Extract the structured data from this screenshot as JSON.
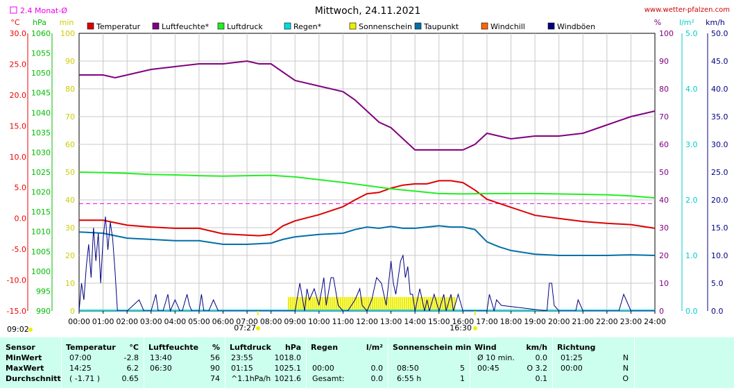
{
  "header": {
    "title": "Mittwoch, 24.11.2021",
    "site": "www.wetter-pfalzen.com",
    "monthly_avg": "2.4 Monat-Ø",
    "sunrise": "07:27",
    "sunset": "16:30",
    "update_time": "09:02"
  },
  "colors": {
    "temperature": "#dd0000",
    "humidity": "#800080",
    "pressure": "#22ee22",
    "rain": "#00dddd",
    "sunshine": "#eeee00",
    "dewpoint": "#006fa8",
    "windchill": "#ff6600",
    "gusts": "#000080",
    "avg_line": "#ee00ee"
  },
  "chart_data": {
    "type": "line",
    "title": "Mittwoch, 24.11.2021",
    "x_labels": [
      "00:00",
      "01:00",
      "02:00",
      "03:00",
      "04:00",
      "05:00",
      "06:00",
      "07:00",
      "08:00",
      "09:00",
      "10:00",
      "11:00",
      "12:00",
      "13:00",
      "14:00",
      "15:00",
      "16:00",
      "17:00",
      "18:00",
      "19:00",
      "20:00",
      "21:00",
      "22:00",
      "23:00",
      "24:00"
    ],
    "legend": [
      "Temperatur",
      "Luftfeuchte*",
      "Luftdruck",
      "Regen*",
      "Sonnenschein",
      "Taupunkt",
      "Windchill",
      "Windböen"
    ],
    "axes": {
      "temperature": {
        "unit": "°C",
        "ylim": [
          -15,
          30
        ],
        "ticks": [
          "30.0",
          "25.0",
          "20.0",
          "15.0",
          "10.0",
          "5.0",
          "0.0",
          "-5.0",
          "-10.0",
          "-15.0"
        ]
      },
      "pressure": {
        "unit": "hPa",
        "ylim": [
          990,
          1060
        ],
        "ticks": [
          "1060",
          "1055",
          "1050",
          "1045",
          "1040",
          "1035",
          "1030",
          "1025",
          "1020",
          "1015",
          "1010",
          "1005",
          "1000",
          "995",
          "990"
        ]
      },
      "sunshine": {
        "unit": "min",
        "ylim": [
          0,
          100
        ],
        "ticks": [
          "100",
          "90",
          "80",
          "70",
          "60",
          "50",
          "40",
          "30",
          "20",
          "10",
          "0"
        ]
      },
      "humidity": {
        "unit": "%",
        "ylim": [
          0,
          100
        ],
        "ticks": [
          "100",
          "90",
          "80",
          "70",
          "60",
          "50",
          "40",
          "30",
          "20",
          "10",
          "0"
        ]
      },
      "rain": {
        "unit": "l/m²",
        "ylim": [
          0,
          5
        ],
        "ticks": [
          "5.0",
          "4.0",
          "3.0",
          "2.0",
          "1.0",
          "0.0"
        ]
      },
      "wind": {
        "unit": "km/h",
        "ylim": [
          0,
          50
        ],
        "ticks": [
          "50.0",
          "45.0",
          "40.0",
          "35.0",
          "30.0",
          "25.0",
          "20.0",
          "15.0",
          "10.0",
          "5.0",
          "0.0"
        ]
      }
    },
    "monthly_avg_temp": 2.4,
    "series": [
      {
        "name": "Temperatur",
        "axis": "temperature",
        "x": [
          0,
          1,
          1.5,
          2,
          3,
          4,
          5,
          6,
          7,
          7.5,
          8,
          8.5,
          9,
          10,
          11,
          11.5,
          12,
          12.5,
          13,
          13.5,
          14,
          14.5,
          15,
          15.5,
          16,
          16.5,
          17,
          18,
          19,
          20,
          21,
          22,
          23,
          24
        ],
        "values": [
          -0.3,
          -0.3,
          -0.7,
          -1.1,
          -1.4,
          -1.6,
          -1.6,
          -2.5,
          -2.7,
          -2.8,
          -2.6,
          -1.2,
          -0.4,
          0.6,
          1.9,
          3.0,
          4.0,
          4.2,
          4.9,
          5.4,
          5.6,
          5.6,
          6.1,
          6.1,
          5.8,
          4.6,
          3.1,
          1.8,
          0.5,
          0.0,
          -0.5,
          -0.8,
          -1.0,
          -1.6
        ]
      },
      {
        "name": "Luftfeuchte*",
        "axis": "humidity",
        "x": [
          0,
          1,
          1.5,
          2,
          3,
          4,
          5,
          6,
          7,
          7.5,
          8,
          8.5,
          9,
          10,
          11,
          11.5,
          12,
          12.5,
          13,
          13.5,
          14,
          14.5,
          15,
          15.5,
          16,
          16.5,
          17,
          18,
          19,
          20,
          21,
          22,
          23,
          24
        ],
        "values": [
          85,
          85,
          84,
          85,
          87,
          88,
          89,
          89,
          90,
          89,
          89,
          86,
          83,
          81,
          79,
          76,
          72,
          68,
          66,
          62,
          58,
          58,
          58,
          58,
          58,
          60,
          64,
          62,
          63,
          63,
          64,
          67,
          70,
          72
        ]
      },
      {
        "name": "Luftdruck",
        "axis": "pressure",
        "x": [
          0,
          1,
          2,
          3,
          4,
          5,
          6,
          7,
          8,
          9,
          10,
          11,
          12,
          13,
          14,
          15,
          16,
          17,
          18,
          19,
          20,
          21,
          22,
          23,
          24
        ],
        "values": [
          1025.0,
          1024.9,
          1024.7,
          1024.4,
          1024.3,
          1024.1,
          1024.0,
          1024.1,
          1024.2,
          1023.8,
          1023.1,
          1022.4,
          1021.6,
          1020.8,
          1020.2,
          1019.6,
          1019.5,
          1019.6,
          1019.6,
          1019.6,
          1019.5,
          1019.4,
          1019.3,
          1019.0,
          1018.5
        ]
      },
      {
        "name": "Taupunkt",
        "axis": "temperature",
        "x": [
          0,
          1,
          1.5,
          2,
          3,
          4,
          5,
          6,
          7,
          7.5,
          8,
          8.5,
          9,
          10,
          11,
          11.5,
          12,
          12.5,
          13,
          13.5,
          14,
          14.5,
          15,
          15.5,
          16,
          16.5,
          17,
          17.5,
          18,
          19,
          20,
          21,
          22,
          23,
          24
        ],
        "values": [
          -2.2,
          -2.4,
          -2.8,
          -3.2,
          -3.4,
          -3.6,
          -3.6,
          -4.2,
          -4.2,
          -4.1,
          -4.0,
          -3.4,
          -3.0,
          -2.6,
          -2.4,
          -1.8,
          -1.4,
          -1.6,
          -1.3,
          -1.6,
          -1.6,
          -1.4,
          -1.2,
          -1.4,
          -1.4,
          -1.8,
          -3.8,
          -4.6,
          -5.2,
          -5.8,
          -6.0,
          -6.0,
          -6.0,
          -5.9,
          -6.0
        ]
      },
      {
        "name": "Windböen",
        "axis": "wind",
        "x": [
          0,
          0.1,
          0.2,
          0.3,
          0.4,
          0.5,
          0.6,
          0.7,
          0.8,
          0.9,
          1.0,
          1.1,
          1.2,
          1.3,
          1.4,
          1.5,
          1.6,
          1.7,
          1.8,
          2.0,
          2.5,
          2.7,
          2.8,
          3.0,
          3.2,
          3.3,
          3.5,
          3.7,
          3.8,
          4.0,
          4.2,
          4.3,
          4.5,
          4.6,
          4.7,
          4.8,
          5.0,
          5.1,
          5.2,
          5.4,
          5.6,
          5.8,
          6.0,
          8.8,
          9.0,
          9.2,
          9.4,
          9.5,
          9.6,
          9.8,
          10.0,
          10.2,
          10.3,
          10.5,
          10.6,
          10.8,
          11.0,
          11.2,
          11.5,
          11.7,
          11.8,
          12.0,
          12.2,
          12.4,
          12.6,
          12.8,
          13.0,
          13.1,
          13.2,
          13.3,
          13.4,
          13.5,
          13.6,
          13.7,
          13.8,
          13.9,
          14.0,
          14.2,
          14.4,
          14.5,
          14.6,
          14.8,
          15.0,
          15.2,
          15.3,
          15.5,
          15.6,
          15.8,
          16.0,
          17.0,
          17.1,
          17.3,
          17.4,
          17.6,
          19.5,
          19.6,
          19.7,
          19.8,
          20.0,
          20.7,
          20.8,
          21.0,
          22.5,
          22.7,
          22.9,
          23.0,
          24.0
        ],
        "values": [
          0,
          5,
          2,
          8,
          12,
          6,
          15,
          9,
          14,
          5,
          13,
          17,
          11,
          16,
          13,
          7,
          0,
          0,
          0,
          0,
          2,
          0,
          0,
          0,
          3,
          0,
          0,
          3,
          0,
          2,
          0,
          0,
          3,
          1,
          0,
          0,
          0,
          3,
          0,
          0,
          2,
          0,
          0,
          0,
          0,
          5,
          0,
          4,
          2,
          4,
          1,
          6,
          1,
          6,
          6,
          1,
          0,
          0,
          2,
          4,
          1,
          0,
          2,
          6,
          5,
          1,
          9,
          5,
          3,
          6,
          9,
          10,
          6,
          8,
          3,
          3,
          0,
          4,
          0,
          2,
          0,
          3,
          0,
          3,
          0,
          3,
          0,
          3,
          0,
          0,
          3,
          0,
          2,
          1,
          0,
          5,
          5,
          1,
          0,
          0,
          2,
          0,
          0,
          3,
          1,
          0,
          0
        ]
      },
      {
        "name": "Sonnenschein",
        "axis": "sunshine",
        "x_start": 8.7,
        "x_end": 15.7,
        "values": [
          5
        ]
      }
    ]
  },
  "stats": {
    "headers": {
      "sensor": "Sensor",
      "temp": "Temperatur",
      "temp_unit": "°C",
      "hum": "Luftfeuchte",
      "hum_unit": "%",
      "press": "Luftdruck",
      "press_unit": "hPa",
      "rain": "Regen",
      "rain_unit": "l/m²",
      "sun": "Sonnenschein min",
      "wind": "Wind",
      "wind_unit": "km/h",
      "dir": "Richtung"
    },
    "rows": [
      {
        "label": "MinWert",
        "temp_t": "07:00",
        "temp_v": "-2.8",
        "hum_t": "13:40",
        "hum_v": "56",
        "press_t": "23:55",
        "press_v": "1018.0",
        "rain_t": "",
        "rain_v": "",
        "sun_t": "",
        "sun_v": "",
        "wind_t": "Ø 10 min.",
        "wind_v": "0.0",
        "dir_t": "01:25",
        "dir_v": "N"
      },
      {
        "label": "MaxWert",
        "temp_t": "14:25",
        "temp_v": "6.2",
        "hum_t": "06:30",
        "hum_v": "90",
        "press_t": "01:15",
        "press_v": "1025.1",
        "rain_t": "00:00",
        "rain_v": "0.0",
        "sun_t": "08:50",
        "sun_v": "5",
        "wind_t": "00:45",
        "wind_v": "O 3.2",
        "dir_t": "00:00",
        "dir_v": "N"
      },
      {
        "label": "Durchschnitt",
        "temp_t": "( -1.71 )",
        "temp_v": "0.65",
        "hum_t": "",
        "hum_v": "74",
        "press_t": "^1.1hPa/h",
        "press_v": "1021.6",
        "rain_t": "Gesamt:",
        "rain_v": "0.0",
        "sun_t": "6:55 h",
        "sun_v": "1",
        "wind_t": "",
        "wind_v": "0.1",
        "dir_t": "",
        "dir_v": "O"
      }
    ]
  }
}
